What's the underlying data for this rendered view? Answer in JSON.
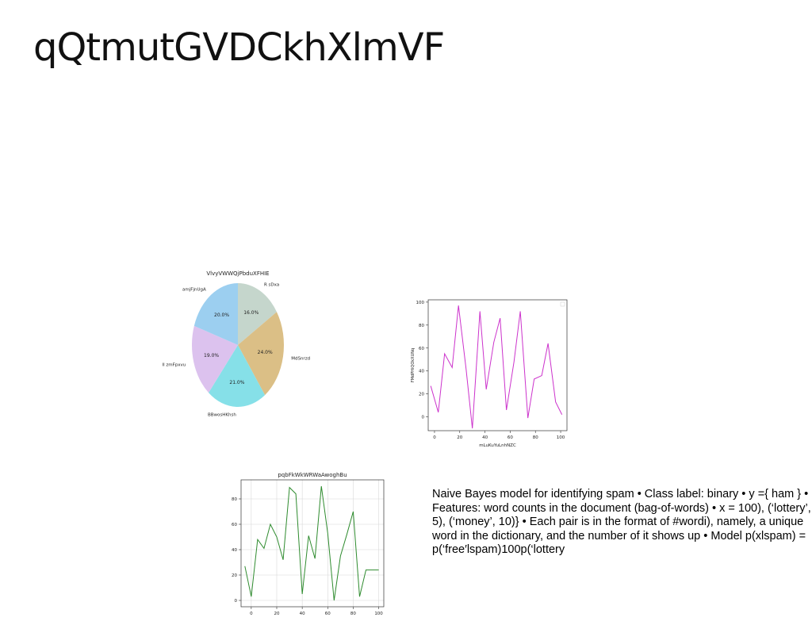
{
  "slide": {
    "title": "qQtmutGVDCkhXlmVF",
    "body_text": "Naive Bayes model for identifying spam • Class label: binary • y ={ ham } • Features: word counts in the document (bag-of-words) • x = 100), (‘lottery’, 5), (‘money’, 10)} • Each pair is in the format of #wordi), namely, a unique word in the dictionary, and the number of it shows up • Model p(xlspam) = p(‘free′lspam)100p(‘lottery"
  },
  "chart_data": [
    {
      "type": "pie",
      "title": "VlvyVWWQjPbduXFHIE",
      "slices": [
        {
          "label": "R sDxa",
          "value": 16.0,
          "pct_label": "16.0%",
          "color": "#c5d6cc"
        },
        {
          "label": "MdSnrzd",
          "value": 24.0,
          "pct_label": "24.0%",
          "color": "#dbbf86"
        },
        {
          "label": "BBwosHKhsh",
          "value": 21.0,
          "pct_label": "21.0%",
          "color": "#86e0e8"
        },
        {
          "label": "Il zmFpxvu",
          "value": 19.0,
          "pct_label": "19.0%",
          "color": "#dcc2ee"
        },
        {
          "label": "amjFjnUgA",
          "value": 20.0,
          "pct_label": "20.0%",
          "color": "#9ccff0"
        }
      ],
      "start_angle_deg": 90,
      "direction": "clockwise"
    },
    {
      "type": "line",
      "title": "",
      "xlabel": "mLuKuYuLnhNZC",
      "ylabel": "FMdPHiQOkXUNq",
      "color": "#cc33cc",
      "xlim": [
        -5,
        105
      ],
      "ylim": [
        -12,
        102
      ],
      "xticks": [
        0,
        20,
        40,
        60,
        80,
        100
      ],
      "yticks": [
        0,
        20,
        40,
        60,
        80,
        100
      ],
      "grid": false,
      "legend": "empty box top-right",
      "series": [
        {
          "x": [
            -3,
            3,
            8,
            14,
            19,
            25,
            30,
            36,
            41,
            47,
            52,
            57,
            63,
            68,
            74,
            79,
            85,
            90,
            96,
            101
          ],
          "y": [
            27,
            4,
            55,
            43,
            97,
            42,
            -10,
            92,
            24,
            65,
            86,
            6,
            48,
            92,
            -1,
            33,
            36,
            64,
            13,
            2
          ]
        }
      ]
    },
    {
      "type": "line",
      "title": "pqbFkWkWRWaAwoghBu",
      "xlabel": "",
      "ylabel": "",
      "color": "#2e8b2e",
      "xlim": [
        -8,
        104
      ],
      "ylim": [
        -5,
        95
      ],
      "xticks": [
        0,
        20,
        40,
        60,
        80,
        100
      ],
      "yticks": [
        0,
        20,
        40,
        60,
        80
      ],
      "grid": true,
      "series": [
        {
          "x": [
            -5,
            0,
            5,
            10,
            15,
            20,
            25,
            30,
            35,
            40,
            45,
            50,
            55,
            60,
            65,
            70,
            75,
            80,
            85,
            90,
            95,
            100
          ],
          "y": [
            27,
            3,
            48,
            41,
            60,
            50,
            32,
            89,
            84,
            5,
            51,
            33,
            90,
            53,
            0,
            35,
            52,
            70,
            3,
            24,
            24,
            24
          ]
        }
      ]
    }
  ]
}
